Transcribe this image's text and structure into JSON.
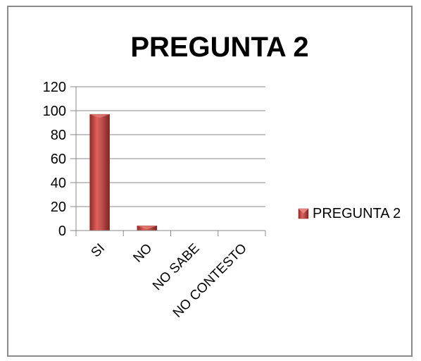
{
  "chart_data": {
    "type": "bar",
    "title": "PREGUNTA 2",
    "categories": [
      "SI",
      "NO",
      "NO SABE",
      "NO CONTESTO"
    ],
    "series": [
      {
        "name": "PREGUNTA 2",
        "values": [
          97,
          4,
          0,
          0
        ],
        "color": "#c0504d"
      }
    ],
    "ylim": [
      0,
      120
    ],
    "yticks": [
      0,
      20,
      40,
      60,
      80,
      100,
      120
    ],
    "grid": true,
    "legend_position": "right"
  }
}
